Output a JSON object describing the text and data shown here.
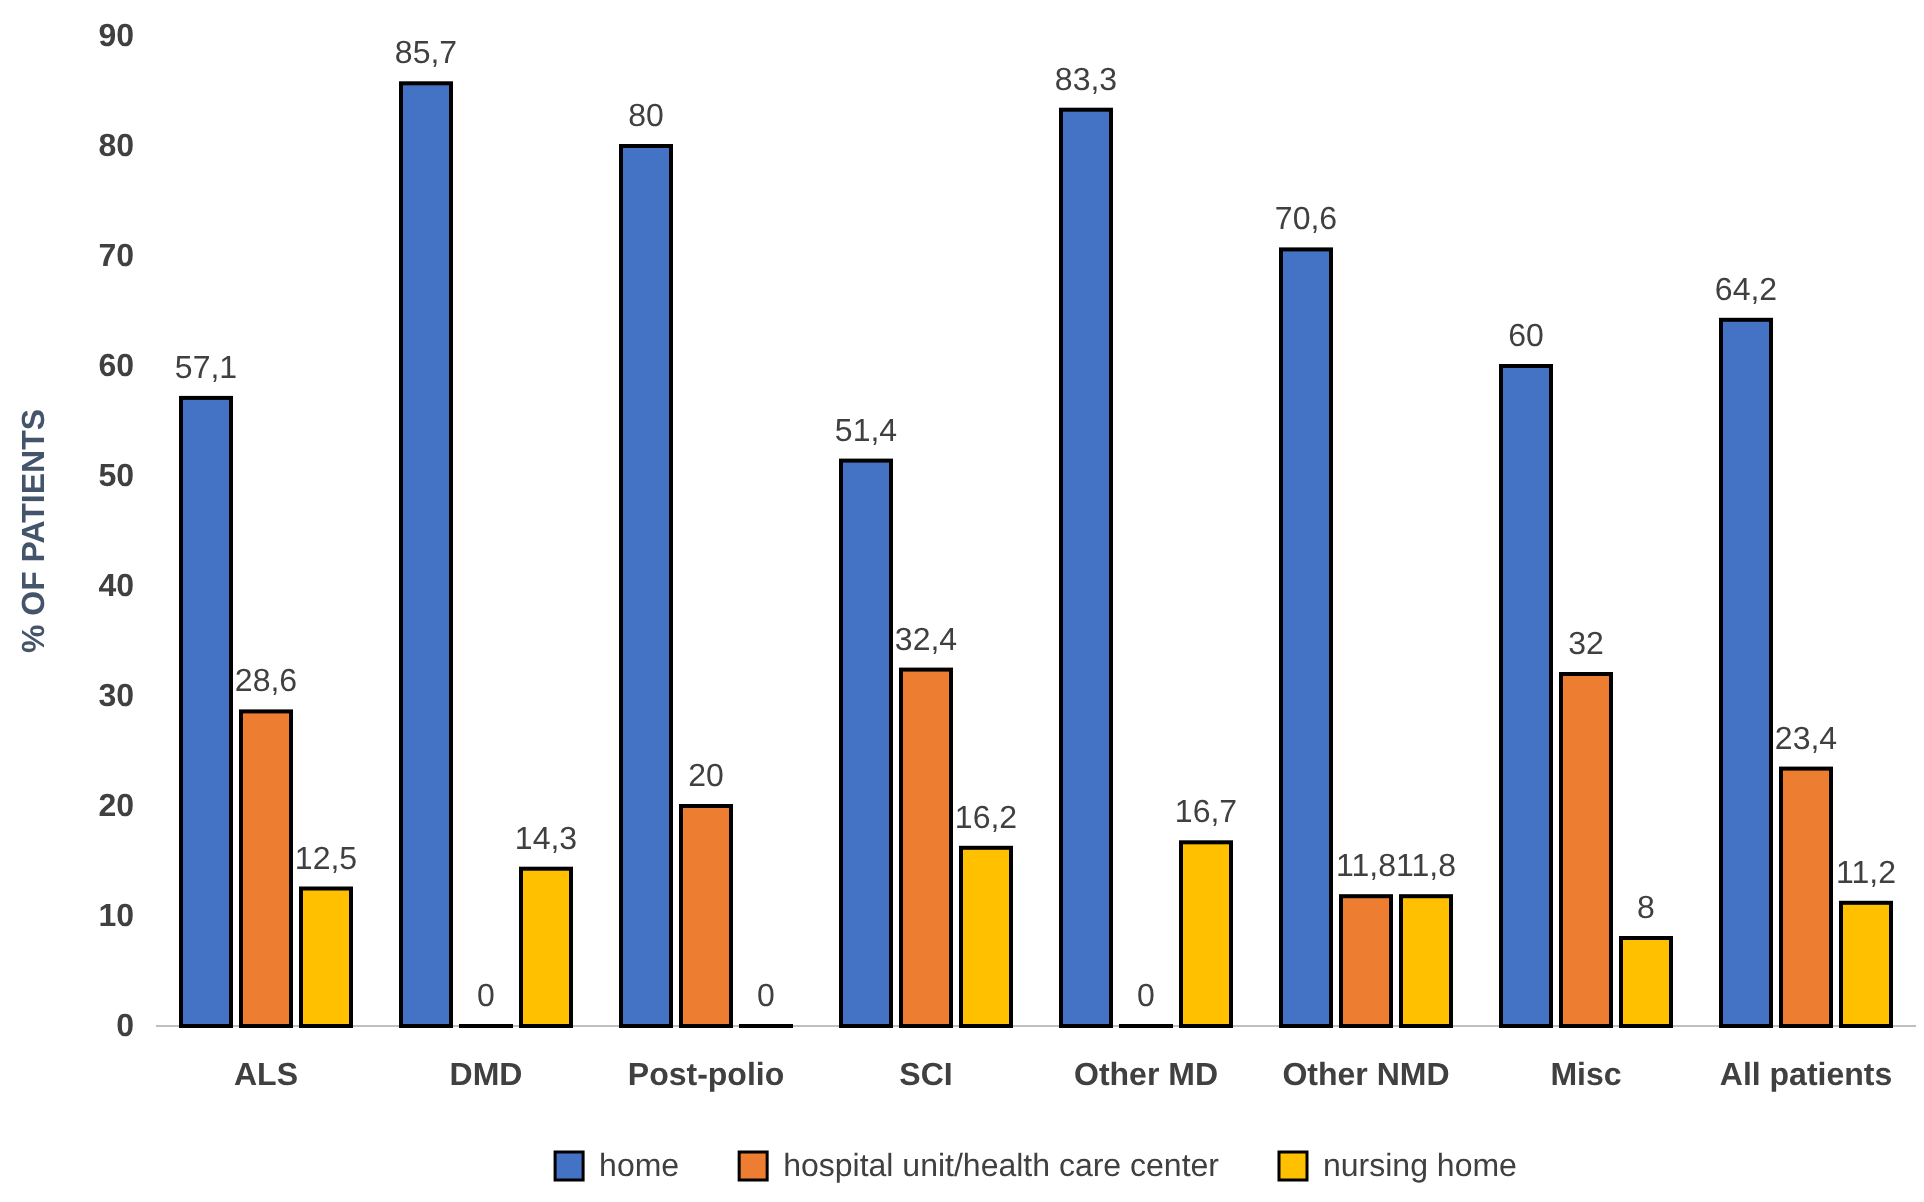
{
  "chart_data": {
    "type": "bar",
    "ylabel": "% OF PATIENTS",
    "categories": [
      "ALS",
      "DMD",
      "Post-polio",
      "SCI",
      "Other MD",
      "Other NMD",
      "Misc",
      "All patients"
    ],
    "ylim": [
      0,
      90
    ],
    "yticks": [
      0,
      10,
      20,
      30,
      40,
      50,
      60,
      70,
      80,
      90
    ],
    "grid": false,
    "legend": "bottom",
    "series": [
      {
        "name": "home",
        "color": "#4472c4",
        "values": [
          57.1,
          85.7,
          80,
          51.4,
          83.3,
          70.6,
          60,
          64.2
        ],
        "value_labels": [
          "57,1",
          "85,7",
          "80",
          "51,4",
          "83,3",
          "70,6",
          "60",
          "64,2"
        ]
      },
      {
        "name": "hospital unit/health care center",
        "color": "#ed7d31",
        "values": [
          28.6,
          0,
          20,
          32.4,
          0,
          11.8,
          32,
          23.4
        ],
        "value_labels": [
          "28,6",
          "0",
          "20",
          "32,4",
          "0",
          "11,8",
          "32",
          "23,4"
        ]
      },
      {
        "name": "nursing home",
        "color": "#ffc000",
        "values": [
          12.5,
          14.3,
          0,
          16.2,
          16.7,
          11.8,
          8,
          11.2
        ],
        "value_labels": [
          "12,5",
          "14,3",
          "0",
          "16,2",
          "16,7",
          "11,8",
          "8",
          "11,2"
        ]
      }
    ]
  }
}
